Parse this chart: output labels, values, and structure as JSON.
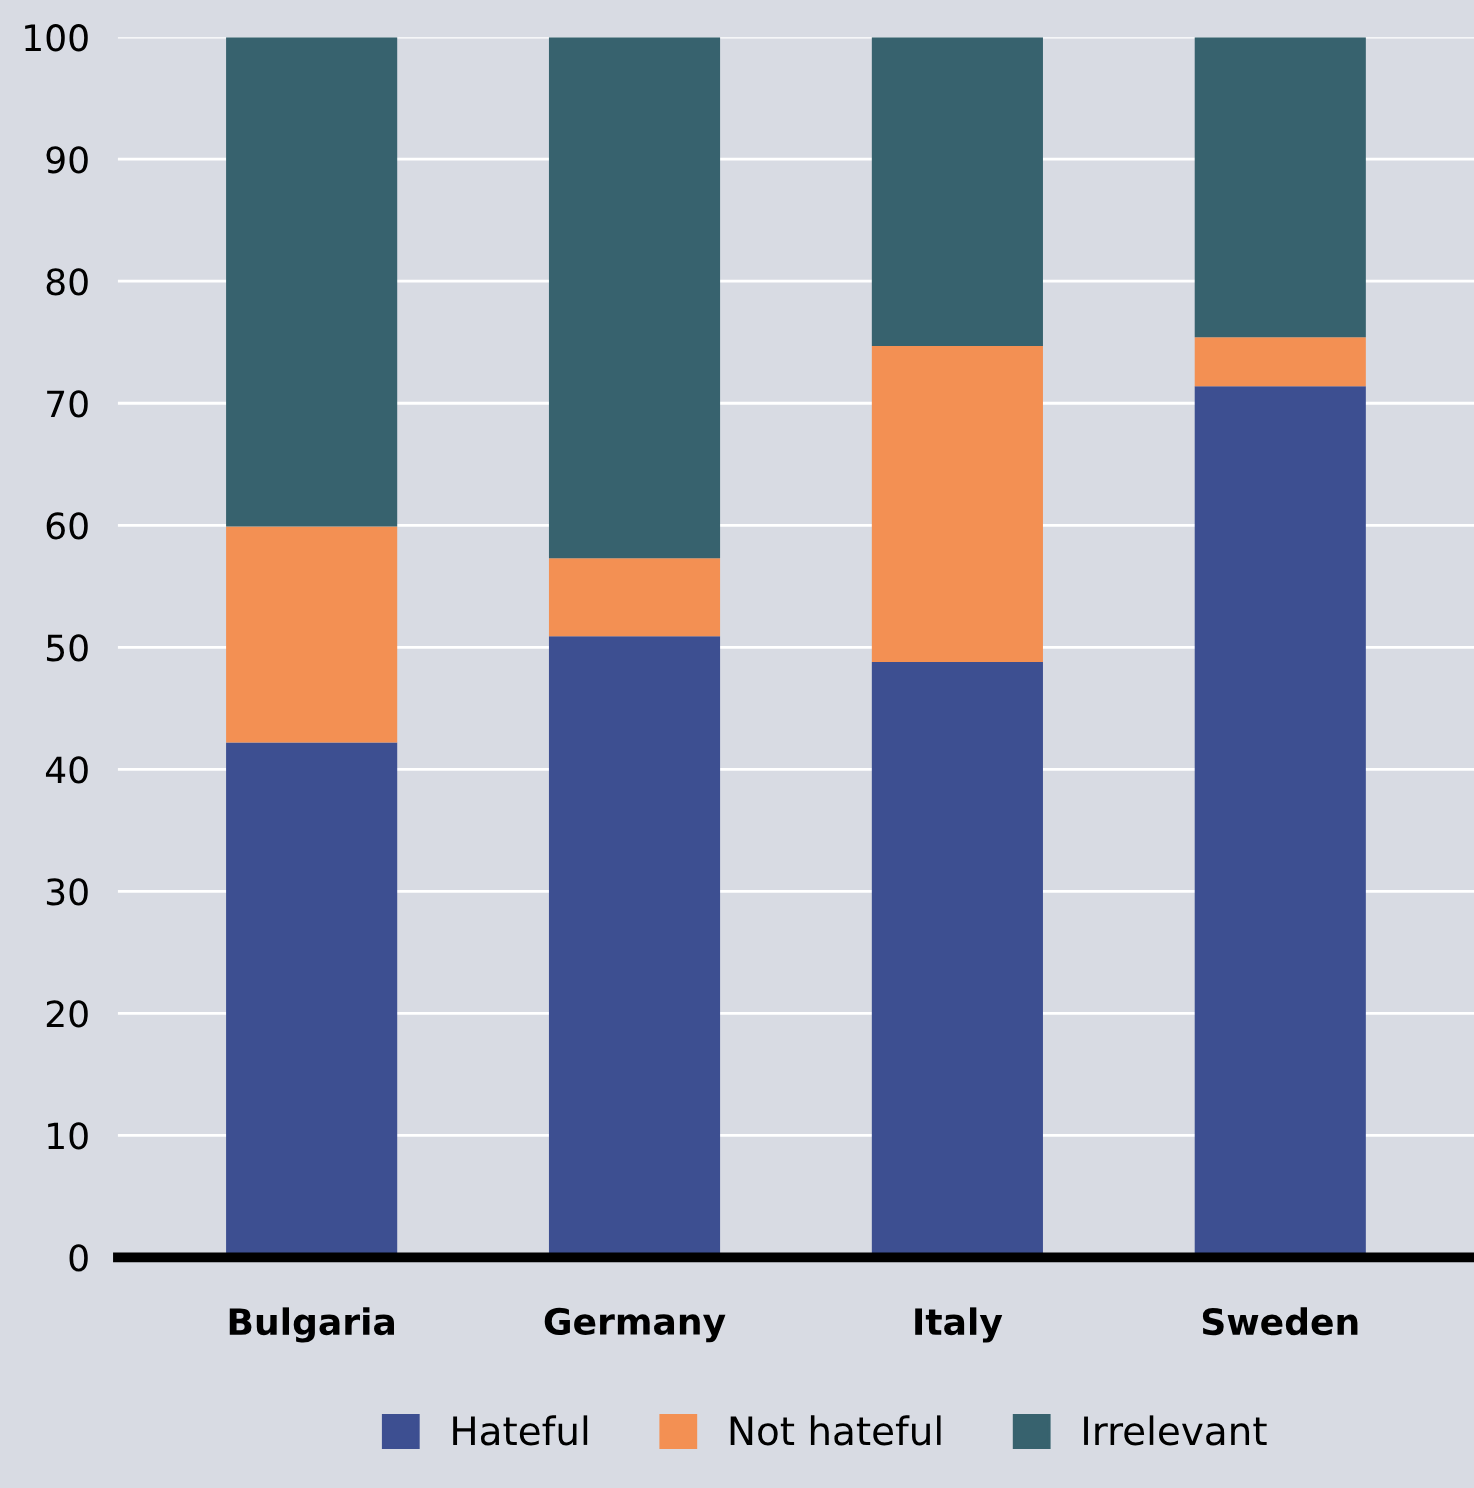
{
  "chart_data": {
    "type": "bar",
    "stacked": true,
    "categories": [
      "Bulgaria",
      "Germany",
      "Italy",
      "Sweden"
    ],
    "series": [
      {
        "name": "Hateful",
        "color": "#3d4f91",
        "values": [
          42.2,
          50.9,
          48.8,
          71.4
        ]
      },
      {
        "name": "Not hateful",
        "color": "#f39053",
        "values": [
          17.7,
          6.4,
          25.9,
          4.0
        ]
      },
      {
        "name": "Irrelevant",
        "color": "#37626e",
        "values": [
          40.1,
          42.7,
          25.3,
          24.6
        ]
      }
    ],
    "ylim": [
      0,
      100
    ],
    "yticks": [
      0,
      10,
      20,
      30,
      40,
      50,
      60,
      70,
      80,
      90,
      100
    ],
    "grid": "y",
    "legend": "bottom"
  }
}
